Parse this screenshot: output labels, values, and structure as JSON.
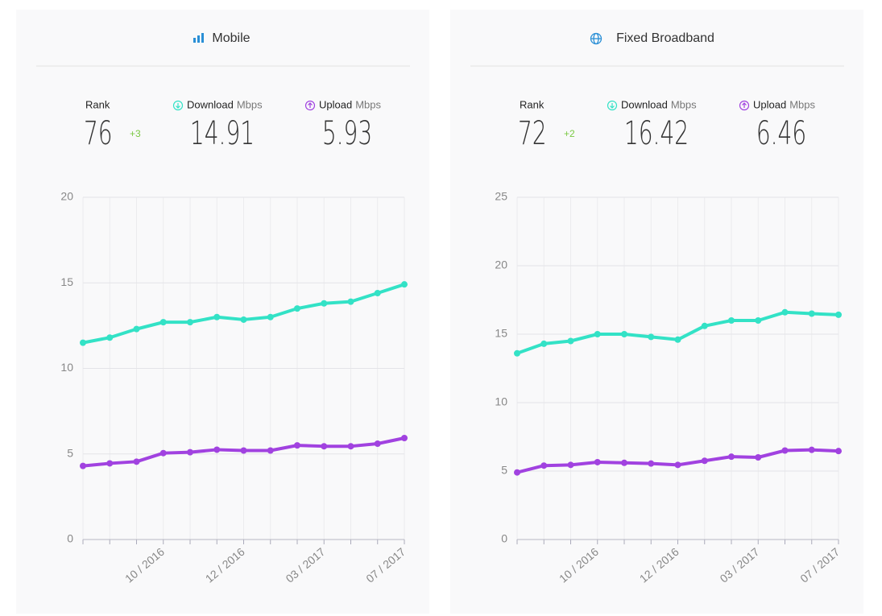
{
  "chart_data": [
    {
      "type": "line",
      "title": "Mobile",
      "rank_label": "Rank",
      "rank": 76,
      "rank_change": "+3",
      "unit": "Mbps",
      "download": 14.91,
      "upload": 5.93,
      "categories": [
        null,
        null,
        null,
        "10 / 2016",
        null,
        null,
        "12 / 2016",
        null,
        null,
        "03 / 2017",
        null,
        null,
        "07 / 2017"
      ],
      "ylim": [
        0,
        20
      ],
      "yticks": [
        0,
        5,
        10,
        15,
        20
      ],
      "grid": true,
      "series": [
        {
          "name": "Download",
          "color": "#33e2c6",
          "values": [
            11.5,
            11.8,
            12.3,
            12.7,
            12.7,
            13.0,
            12.85,
            13.0,
            13.5,
            13.8,
            13.9,
            14.4,
            14.91
          ]
        },
        {
          "name": "Upload",
          "color": "#a142e0",
          "values": [
            4.3,
            4.45,
            4.55,
            5.05,
            5.1,
            5.25,
            5.2,
            5.2,
            5.5,
            5.45,
            5.45,
            5.6,
            5.93
          ]
        }
      ]
    },
    {
      "type": "line",
      "title": "Fixed Broadband",
      "rank_label": "Rank",
      "rank": 72,
      "rank_change": "+2",
      "unit": "Mbps",
      "download": 16.42,
      "upload": 6.46,
      "categories": [
        null,
        null,
        null,
        "10 / 2016",
        null,
        null,
        "12 / 2016",
        null,
        null,
        "03 / 2017",
        null,
        null,
        "07 / 2017"
      ],
      "ylim": [
        0,
        25
      ],
      "yticks": [
        0,
        5,
        10,
        15,
        20,
        25
      ],
      "grid": true,
      "series": [
        {
          "name": "Download",
          "color": "#33e2c6",
          "values": [
            13.6,
            14.3,
            14.5,
            15.0,
            15.0,
            14.8,
            14.6,
            15.6,
            16.0,
            16.0,
            16.6,
            16.5,
            16.42
          ]
        },
        {
          "name": "Upload",
          "color": "#a142e0",
          "values": [
            4.9,
            5.4,
            5.45,
            5.65,
            5.6,
            5.55,
            5.45,
            5.75,
            6.05,
            6.0,
            6.5,
            6.55,
            6.46
          ]
        }
      ]
    }
  ]
}
